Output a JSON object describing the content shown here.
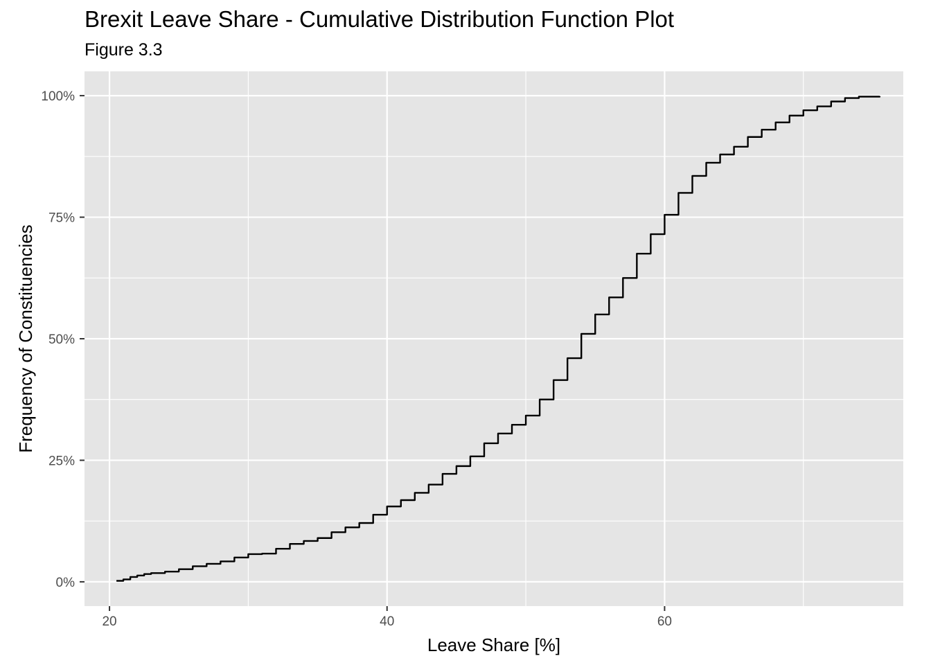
{
  "chart_data": {
    "type": "line",
    "title": "Brexit Leave Share - Cumulative Distribution Function Plot",
    "subtitle": "Figure 3.3",
    "xlabel": "Leave Share [%]",
    "ylabel": "Frequency of Constituencies",
    "xlim": [
      18.2,
      77.2
    ],
    "ylim": [
      -0.05,
      1.05
    ],
    "x_ticks": [
      20,
      40,
      60
    ],
    "x_tick_labels": [
      "20",
      "40",
      "60"
    ],
    "y_ticks": [
      0,
      0.25,
      0.5,
      0.75,
      1.0
    ],
    "y_tick_labels": [
      "0%",
      "25%",
      "50%",
      "75%",
      "100%"
    ],
    "grid": true,
    "colors": {
      "panel": "#e5e5e5",
      "grid": "#ffffff",
      "line": "#000000"
    },
    "series": [
      {
        "x": [
          20.5,
          21.0,
          21.5,
          22.0,
          22.5,
          23.0,
          24.0,
          25.0,
          26.0,
          27.0,
          28.0,
          29.0,
          30.0,
          31.0,
          32.0,
          33.0,
          34.0,
          35.0,
          36.0,
          37.0,
          38.0,
          39.0,
          40.0,
          41.0,
          42.0,
          43.0,
          44.0,
          45.0,
          46.0,
          47.0,
          48.0,
          49.0,
          50.0,
          51.0,
          52.0,
          53.0,
          54.0,
          55.0,
          56.0,
          57.0,
          58.0,
          59.0,
          60.0,
          61.0,
          62.0,
          63.0,
          64.0,
          65.0,
          66.0,
          67.0,
          68.0,
          69.0,
          70.0,
          71.0,
          72.0,
          73.0,
          74.0,
          75.5
        ],
        "y": [
          0.002,
          0.005,
          0.01,
          0.013,
          0.016,
          0.018,
          0.021,
          0.026,
          0.032,
          0.037,
          0.042,
          0.05,
          0.057,
          0.058,
          0.068,
          0.078,
          0.084,
          0.09,
          0.102,
          0.112,
          0.121,
          0.138,
          0.155,
          0.168,
          0.183,
          0.2,
          0.222,
          0.238,
          0.258,
          0.285,
          0.305,
          0.323,
          0.342,
          0.375,
          0.415,
          0.46,
          0.51,
          0.55,
          0.585,
          0.625,
          0.675,
          0.715,
          0.755,
          0.8,
          0.835,
          0.862,
          0.879,
          0.895,
          0.915,
          0.93,
          0.945,
          0.959,
          0.97,
          0.978,
          0.988,
          0.995,
          0.998,
          0.999
        ]
      }
    ]
  }
}
